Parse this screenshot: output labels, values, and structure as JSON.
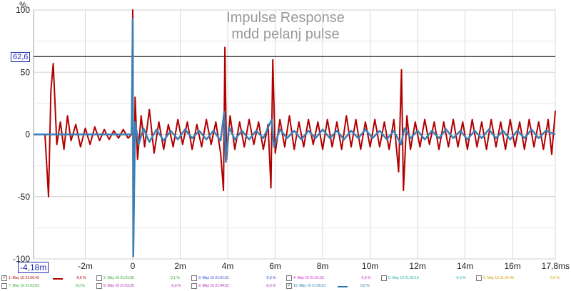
{
  "chart_data": {
    "type": "line",
    "title": "Impulse Response",
    "subtitle": "mdd pelanj pulse",
    "ylabel": "%",
    "xlim": [
      -4.18,
      17.8
    ],
    "ylim": [
      -100,
      100
    ],
    "x_ticks": [
      "-2m",
      "0",
      "2m",
      "4m",
      "6m",
      "8m",
      "10m",
      "12m",
      "14m",
      "16m",
      "17,8ms"
    ],
    "x_tick_values": [
      -2,
      0,
      2,
      4,
      6,
      8,
      10,
      12,
      14,
      16,
      17.8
    ],
    "y_ticks": [
      "100",
      "50",
      "0",
      "-50",
      "-100"
    ],
    "y_tick_values": [
      100,
      50,
      0,
      -50,
      -100
    ],
    "grid": true,
    "cursor": {
      "y_label": "62,6",
      "y_value": 62.6,
      "x_label": "-4,18m"
    },
    "series": [
      {
        "color": "#b00000",
        "points": [
          [
            -4.18,
            0
          ],
          [
            -3.9,
            0
          ],
          [
            -3.7,
            0
          ],
          [
            -3.55,
            -50
          ],
          [
            -3.45,
            35
          ],
          [
            -3.35,
            57
          ],
          [
            -3.2,
            -8
          ],
          [
            -3.05,
            10
          ],
          [
            -2.9,
            -12
          ],
          [
            -2.75,
            15
          ],
          [
            -2.6,
            -5
          ],
          [
            -2.4,
            8
          ],
          [
            -2.2,
            -10
          ],
          [
            -2.0,
            5
          ],
          [
            -1.8,
            -8
          ],
          [
            -1.6,
            6
          ],
          [
            -1.4,
            -5
          ],
          [
            -1.2,
            4
          ],
          [
            -1.0,
            -4
          ],
          [
            -0.8,
            3
          ],
          [
            -0.6,
            -3
          ],
          [
            -0.4,
            4
          ],
          [
            -0.2,
            -3
          ],
          [
            -0.05,
            0
          ],
          [
            0,
            100
          ],
          [
            0.03,
            -90
          ],
          [
            0.1,
            30
          ],
          [
            0.2,
            -20
          ],
          [
            0.35,
            15
          ],
          [
            0.5,
            -10
          ],
          [
            0.7,
            20
          ],
          [
            0.9,
            -15
          ],
          [
            1.1,
            10
          ],
          [
            1.3,
            -12
          ],
          [
            1.5,
            8
          ],
          [
            1.7,
            -10
          ],
          [
            1.9,
            12
          ],
          [
            2.1,
            -8
          ],
          [
            2.3,
            10
          ],
          [
            2.5,
            -12
          ],
          [
            2.7,
            8
          ],
          [
            2.9,
            -10
          ],
          [
            3.1,
            12
          ],
          [
            3.3,
            -8
          ],
          [
            3.5,
            10
          ],
          [
            3.7,
            -15
          ],
          [
            3.82,
            -45
          ],
          [
            3.88,
            70
          ],
          [
            3.95,
            -20
          ],
          [
            4.1,
            15
          ],
          [
            4.3,
            -12
          ],
          [
            4.5,
            10
          ],
          [
            4.7,
            -10
          ],
          [
            4.9,
            12
          ],
          [
            5.1,
            -8
          ],
          [
            5.3,
            10
          ],
          [
            5.5,
            -12
          ],
          [
            5.7,
            8
          ],
          [
            5.82,
            -43
          ],
          [
            5.9,
            60
          ],
          [
            6.0,
            -15
          ],
          [
            6.2,
            12
          ],
          [
            6.4,
            -10
          ],
          [
            6.6,
            15
          ],
          [
            6.8,
            -12
          ],
          [
            7.0,
            10
          ],
          [
            7.2,
            -10
          ],
          [
            7.4,
            12
          ],
          [
            7.6,
            -8
          ],
          [
            7.8,
            10
          ],
          [
            8.0,
            -12
          ],
          [
            8.2,
            12
          ],
          [
            8.4,
            -10
          ],
          [
            8.6,
            10
          ],
          [
            8.8,
            -12
          ],
          [
            9.0,
            15
          ],
          [
            9.2,
            -10
          ],
          [
            9.4,
            12
          ],
          [
            9.6,
            -12
          ],
          [
            9.8,
            10
          ],
          [
            10.0,
            -10
          ],
          [
            10.2,
            12
          ],
          [
            10.4,
            -10
          ],
          [
            10.6,
            10
          ],
          [
            10.8,
            -12
          ],
          [
            11.0,
            12
          ],
          [
            11.2,
            -30
          ],
          [
            11.32,
            52
          ],
          [
            11.4,
            -45
          ],
          [
            11.55,
            15
          ],
          [
            11.7,
            -12
          ],
          [
            11.9,
            10
          ],
          [
            12.1,
            -10
          ],
          [
            12.3,
            12
          ],
          [
            12.5,
            -8
          ],
          [
            12.7,
            10
          ],
          [
            12.9,
            -12
          ],
          [
            13.1,
            10
          ],
          [
            13.3,
            -10
          ],
          [
            13.5,
            12
          ],
          [
            13.7,
            -10
          ],
          [
            13.9,
            10
          ],
          [
            14.1,
            -12
          ],
          [
            14.3,
            12
          ],
          [
            14.5,
            -10
          ],
          [
            14.7,
            10
          ],
          [
            14.9,
            -12
          ],
          [
            15.1,
            12
          ],
          [
            15.3,
            -10
          ],
          [
            15.5,
            10
          ],
          [
            15.7,
            -12
          ],
          [
            15.9,
            12
          ],
          [
            16.1,
            -10
          ],
          [
            16.3,
            10
          ],
          [
            16.5,
            -12
          ],
          [
            16.7,
            12
          ],
          [
            16.9,
            -10
          ],
          [
            17.1,
            10
          ],
          [
            17.3,
            -12
          ],
          [
            17.5,
            12
          ],
          [
            17.65,
            -16
          ],
          [
            17.8,
            19
          ]
        ]
      },
      {
        "color": "#3a7fb5",
        "points": [
          [
            -4.18,
            0
          ],
          [
            -3.6,
            0
          ],
          [
            -3.0,
            0
          ],
          [
            -2.0,
            0
          ],
          [
            -1.0,
            0
          ],
          [
            -0.2,
            0
          ],
          [
            -0.05,
            0
          ],
          [
            0,
            93
          ],
          [
            0.02,
            -98
          ],
          [
            0.1,
            10
          ],
          [
            0.25,
            -8
          ],
          [
            0.45,
            5
          ],
          [
            0.7,
            -6
          ],
          [
            1.0,
            4
          ],
          [
            1.3,
            -5
          ],
          [
            1.6,
            3
          ],
          [
            1.9,
            -4
          ],
          [
            2.2,
            4
          ],
          [
            2.5,
            -3
          ],
          [
            2.8,
            3
          ],
          [
            3.1,
            -4
          ],
          [
            3.4,
            3
          ],
          [
            3.7,
            -5
          ],
          [
            3.85,
            18
          ],
          [
            3.92,
            -22
          ],
          [
            4.05,
            6
          ],
          [
            4.3,
            -4
          ],
          [
            4.6,
            3
          ],
          [
            4.9,
            -4
          ],
          [
            5.2,
            3
          ],
          [
            5.5,
            -3
          ],
          [
            5.85,
            12
          ],
          [
            5.95,
            -10
          ],
          [
            6.2,
            4
          ],
          [
            6.5,
            -3
          ],
          [
            6.8,
            3
          ],
          [
            7.1,
            -4
          ],
          [
            7.4,
            3
          ],
          [
            7.7,
            -3
          ],
          [
            8.0,
            4
          ],
          [
            8.3,
            -3
          ],
          [
            8.6,
            3
          ],
          [
            8.9,
            -4
          ],
          [
            9.2,
            3
          ],
          [
            9.5,
            -3
          ],
          [
            9.8,
            4
          ],
          [
            10.1,
            -3
          ],
          [
            10.4,
            3
          ],
          [
            10.7,
            -4
          ],
          [
            11.0,
            3
          ],
          [
            11.3,
            -8
          ],
          [
            11.45,
            5
          ],
          [
            11.7,
            -3
          ],
          [
            12.0,
            3
          ],
          [
            12.3,
            -4
          ],
          [
            12.6,
            3
          ],
          [
            12.9,
            -3
          ],
          [
            13.2,
            4
          ],
          [
            13.5,
            -3
          ],
          [
            13.8,
            3
          ],
          [
            14.1,
            -4
          ],
          [
            14.4,
            3
          ],
          [
            14.7,
            -3
          ],
          [
            15.0,
            4
          ],
          [
            15.3,
            -3
          ],
          [
            15.6,
            3
          ],
          [
            15.9,
            -4
          ],
          [
            16.2,
            3
          ],
          [
            16.5,
            -3
          ],
          [
            16.8,
            4
          ],
          [
            17.1,
            -3
          ],
          [
            17.4,
            3
          ],
          [
            17.8,
            0
          ]
        ]
      }
    ]
  },
  "legend": [
    {
      "label": "1: May 10 21:00:43",
      "checked": true,
      "color": "#b00000",
      "value": "-0,0 %"
    },
    {
      "label": "2: May 10 21:01:06",
      "checked": false,
      "color": "#2aa02a",
      "value": "0,1 %"
    },
    {
      "label": "3: May 10 21:01:31",
      "checked": false,
      "color": "#2244cc",
      "value": "-0,0 %"
    },
    {
      "label": "4: May 10 21:01:53",
      "checked": false,
      "color": "#cc22cc",
      "value": "-0,0 %"
    },
    {
      "label": "5: May 10 21:02:16",
      "checked": false,
      "color": "#22aaaa",
      "value": "-0,0 %"
    },
    {
      "label": "6: May 10 21:02:40",
      "checked": false,
      "color": "#d2a000",
      "value": "0,0 %"
    },
    {
      "label": "7: May 10 21:03:03",
      "checked": false,
      "color": "#2aa02a",
      "value": "0,0 %"
    },
    {
      "label": "8: May 10 21:03:25",
      "checked": false,
      "color": "#aa22aa",
      "value": "-0,0 %"
    },
    {
      "label": "9: May 10 21:04:52",
      "checked": false,
      "color": "#aa22aa",
      "value": "-0,0 %"
    },
    {
      "label": "10: May 10 21:05:51",
      "checked": true,
      "color": "#2277aa",
      "value": "0,0 %"
    }
  ]
}
